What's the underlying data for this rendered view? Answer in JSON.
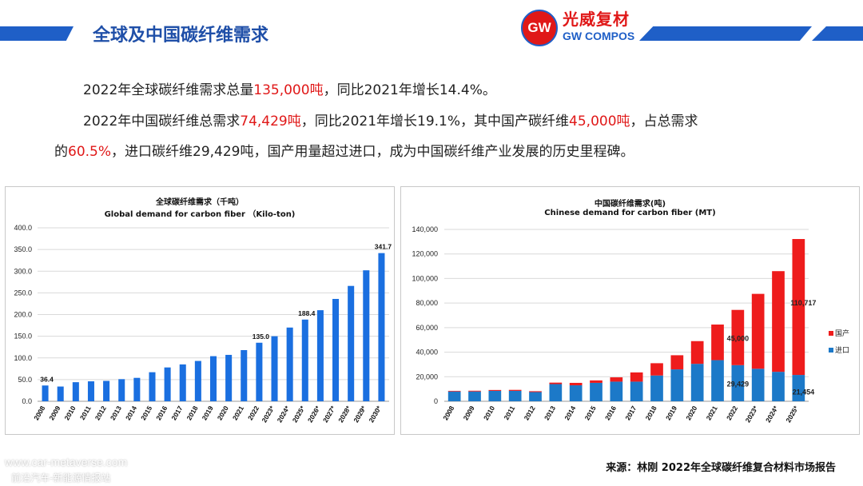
{
  "header": {
    "title": "全球及中国碳纤维需求",
    "logo_mark": "GW",
    "logo_cn": "光威复材",
    "logo_en": "GW COMPOS"
  },
  "paragraphs": {
    "p1_a": "2022年全球碳纤维需求总量",
    "p1_red": "135,000吨",
    "p1_b": "，同比2021年增长14.4%。",
    "p2_a": "2022年中国碳纤维总需求",
    "p2_red1": "74,429吨",
    "p2_b": "，同比2021年增长19.1%，其中国产碳纤维",
    "p2_red2": "45,000吨",
    "p2_c": "，占总需求",
    "p3_a": "的",
    "p3_red": "60.5%",
    "p3_b": "，进口碳纤维29,429吨，国产用量超过进口，成为中国碳纤维产业发展的历史里程碑。"
  },
  "colors": {
    "brand_blue": "#1f5fc7",
    "bar_blue": "#1a6fe0",
    "import_blue": "#1c79c8",
    "domestic_red": "#ee1c1c",
    "highlight_red": "#e01818"
  },
  "chart_data": [
    {
      "type": "bar",
      "title": "全球碳纤维需求（千吨）",
      "subtitle": "Global demand for carbon fiber （Kilo-ton)",
      "categories": [
        "2008",
        "2009",
        "2010",
        "2011",
        "2012",
        "2013",
        "2014",
        "2015",
        "2016",
        "2017",
        "2018",
        "2019",
        "2020",
        "2021",
        "2022",
        "2023*",
        "2024*",
        "2025*",
        "2026*",
        "2027*",
        "2028*",
        "2029*",
        "2030*"
      ],
      "values": [
        36.4,
        34,
        44,
        46,
        47,
        51,
        54,
        67,
        78,
        85,
        93,
        104,
        107,
        118,
        135,
        150,
        170,
        188.4,
        210,
        236,
        266,
        302,
        341.7
      ],
      "data_labels": {
        "2008": "36.4",
        "2022": "135.0",
        "2025*": "188.4",
        "2030*": "341.7"
      },
      "yticks": [
        "0.0",
        "50.0",
        "100.0",
        "150.0",
        "200.0",
        "250.0",
        "300.0",
        "350.0",
        "400.0"
      ],
      "ylim": [
        0,
        400
      ],
      "grid": true
    },
    {
      "type": "bar",
      "stacked": true,
      "title": "中国碳纤维需求(吨)",
      "subtitle": "Chinese demand for carbon fiber (MT)",
      "categories": [
        "2008",
        "2009",
        "2010",
        "2011",
        "2012",
        "2013",
        "2014",
        "2015",
        "2016",
        "2017",
        "2018",
        "2019",
        "2020",
        "2021",
        "2022",
        "2023*",
        "2024*",
        "2025*"
      ],
      "series": [
        {
          "name": "进口",
          "values": [
            8000,
            8000,
            8500,
            8500,
            7500,
            14000,
            13000,
            15000,
            16000,
            16000,
            21000,
            26000,
            30500,
            33500,
            29429,
            26500,
            24000,
            21454
          ]
        },
        {
          "name": "国产",
          "values": [
            500,
            600,
            700,
            800,
            700,
            1200,
            2000,
            2000,
            3500,
            7500,
            10000,
            11500,
            18500,
            29000,
            45000,
            61000,
            82000,
            110717
          ]
        }
      ],
      "data_labels": [
        "45,000",
        "29,429",
        "110,717",
        "21,454"
      ],
      "yticks": [
        "0",
        "20,000",
        "40,000",
        "60,000",
        "80,000",
        "100,000",
        "120,000",
        "140,000"
      ],
      "ylim": [
        0,
        140000
      ],
      "legend_position": "right",
      "grid": true
    }
  ],
  "footer": {
    "source": "来源：林刚  2022年全球碳纤维复合材料市场报告",
    "watermark_url": "www.car-metaverse.com",
    "watermark_cn": "前沿汽车-新能源情报站"
  }
}
